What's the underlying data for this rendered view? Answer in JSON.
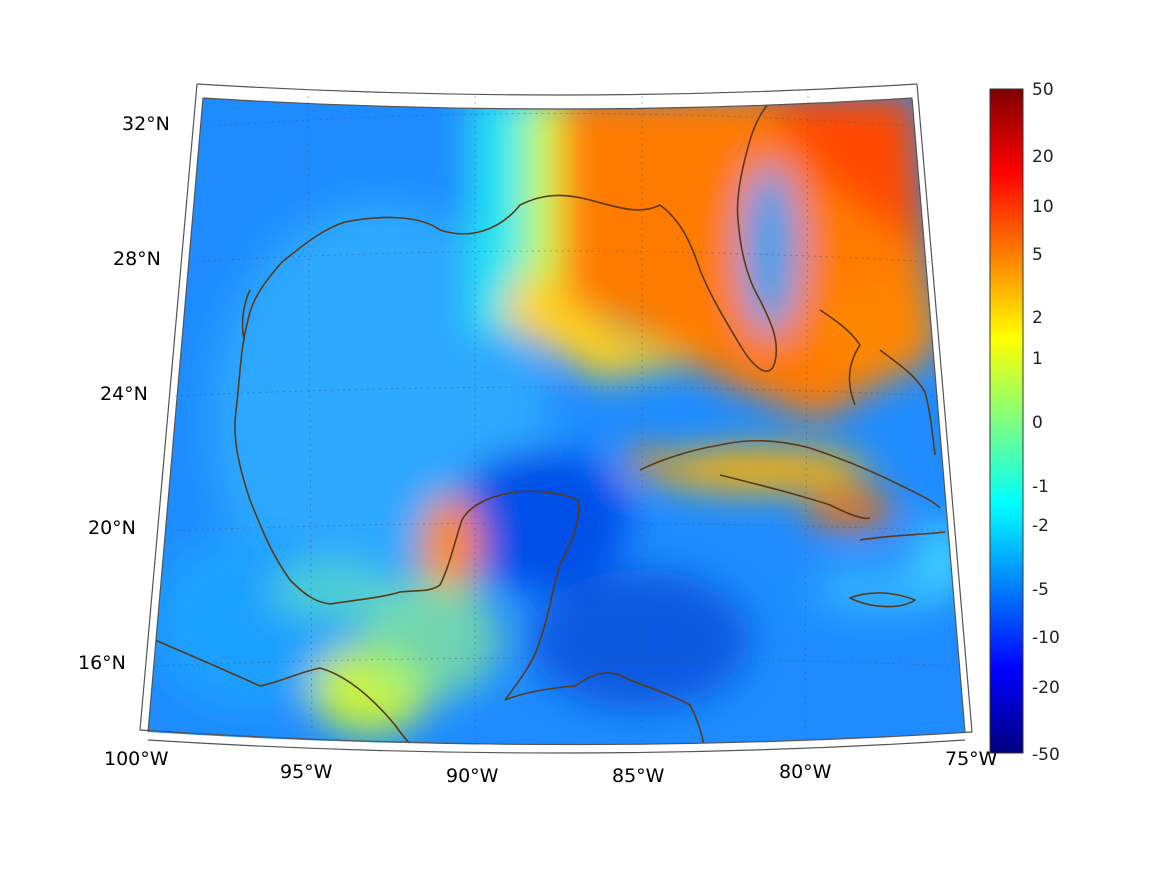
{
  "map": {
    "projection": "lambert-conformal-conic",
    "lon_range": [
      -100,
      -75
    ],
    "lat_range": [
      14,
      33
    ]
  },
  "axes": {
    "lat_labels": [
      "32°N",
      "28°N",
      "24°N",
      "20°N",
      "16°N"
    ],
    "lon_labels": [
      "100°W",
      "95°W",
      "90°W",
      "85°W",
      "80°W",
      "75°W"
    ]
  },
  "colorbar": {
    "colormap": "jet",
    "scale": "symmetric-log",
    "ticks": [
      "50",
      "20",
      "10",
      "5",
      "2",
      "1",
      "0",
      "-1",
      "-2",
      "-5",
      "-10",
      "-20",
      "-50"
    ],
    "colors": [
      "#7f0000",
      "#ff0000",
      "#ff7f00",
      "#ffff00",
      "#7fff7f",
      "#00ffff",
      "#007fff",
      "#0000ff",
      "#00007f"
    ]
  },
  "coastline_color": "#5b3a16"
}
